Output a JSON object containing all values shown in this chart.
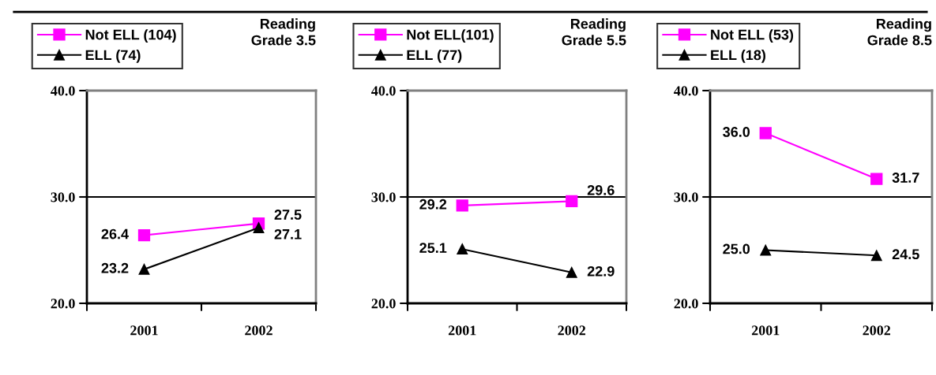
{
  "chart_data": [
    {
      "type": "line",
      "title": "Reading\nGrade 3.5",
      "categories": [
        "2001",
        "2002"
      ],
      "ylim": [
        20,
        40
      ],
      "yticks": [
        {
          "value": 20,
          "label": "20.0"
        },
        {
          "value": 30,
          "label": "30.0"
        },
        {
          "value": 40,
          "label": "40.0"
        }
      ],
      "grid": "y",
      "legend": "top left",
      "data_labels": true,
      "line_style": "solid",
      "series": [
        {
          "name": "Not ELL (104)",
          "color": "#ff00ff",
          "marker": "square",
          "values": [
            26.4,
            27.5
          ]
        },
        {
          "name": "ELL (74)",
          "color": "#000000",
          "marker": "triangle",
          "values": [
            23.2,
            27.1
          ]
        }
      ]
    },
    {
      "type": "line",
      "title": "Reading\nGrade 5.5",
      "categories": [
        "2001",
        "2002"
      ],
      "ylim": [
        20,
        40
      ],
      "yticks": [
        {
          "value": 20,
          "label": "20.0"
        },
        {
          "value": 30,
          "label": "30.0"
        },
        {
          "value": 40,
          "label": "40.0"
        }
      ],
      "grid": "y",
      "legend": "top left",
      "data_labels": true,
      "line_style": "solid",
      "series": [
        {
          "name": "Not ELL(101)",
          "color": "#ff00ff",
          "marker": "square",
          "values": [
            29.2,
            29.6
          ]
        },
        {
          "name": "ELL (77)",
          "color": "#000000",
          "marker": "triangle",
          "values": [
            25.1,
            22.9
          ]
        }
      ]
    },
    {
      "type": "line",
      "title": "Reading\nGrade 8.5",
      "categories": [
        "2001",
        "2002"
      ],
      "ylim": [
        20,
        40
      ],
      "yticks": [
        {
          "value": 20,
          "label": "20.0"
        },
        {
          "value": 30,
          "label": "30.0"
        },
        {
          "value": 40,
          "label": "40.0"
        }
      ],
      "grid": "y",
      "legend": "top left",
      "line_style": "solid",
      "series": [
        {
          "name": "Not ELL (53)",
          "color": "#ff00ff",
          "marker": "square",
          "values": [
            36.0,
            31.7
          ],
          "value_labels": [
            "36.0",
            "31.7"
          ]
        },
        {
          "name": "ELL (18)",
          "color": "#000000",
          "marker": "triangle",
          "values": [
            25.0,
            24.5
          ],
          "value_labels": [
            "25.0",
            "24.5"
          ]
        }
      ]
    }
  ]
}
